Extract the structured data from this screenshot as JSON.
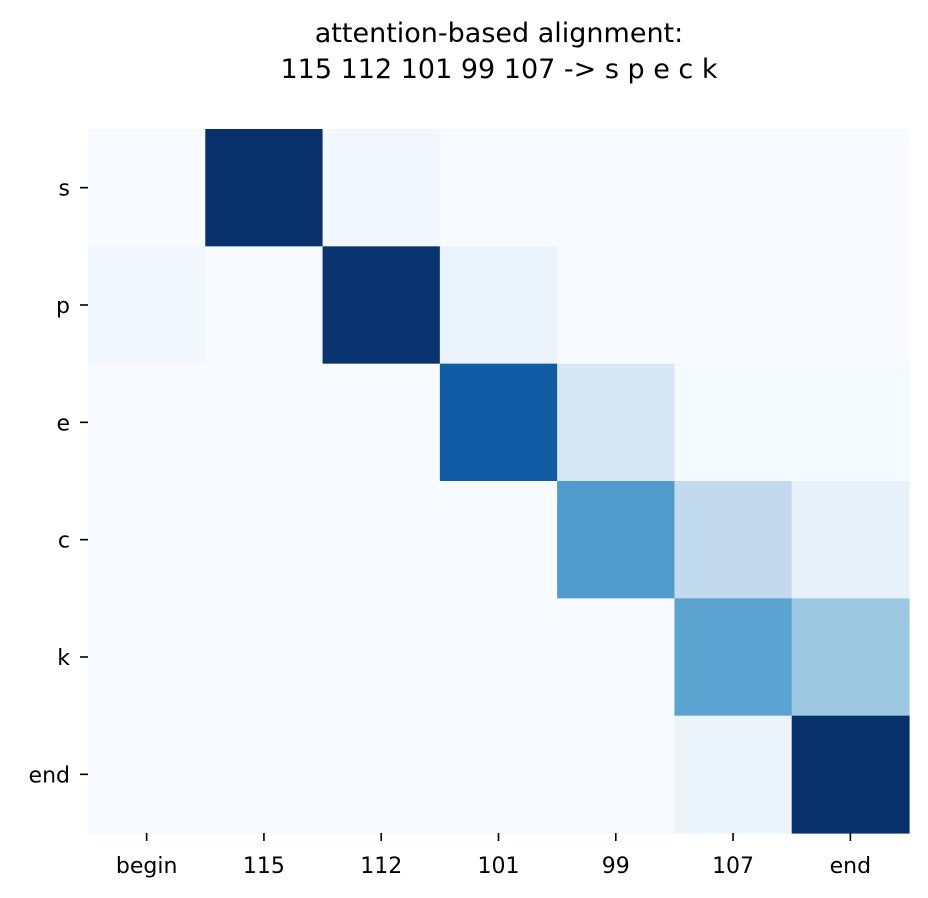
{
  "chart_data": {
    "type": "heatmap",
    "title_lines": [
      "attention-based alignment:",
      "115 112 101 99 107 -> s p e c k"
    ],
    "x_categories": [
      "begin",
      "115",
      "112",
      "101",
      "99",
      "107",
      "end"
    ],
    "y_categories": [
      "s",
      "p",
      "e",
      "c",
      "k",
      "end"
    ],
    "values": [
      [
        0.0,
        1.0,
        0.03,
        0.0,
        0.0,
        0.0,
        0.0
      ],
      [
        0.02,
        0.0,
        0.99,
        0.06,
        0.0,
        0.0,
        0.0
      ],
      [
        0.0,
        0.0,
        0.0,
        0.83,
        0.16,
        0.01,
        0.01
      ],
      [
        0.0,
        0.0,
        0.0,
        0.0,
        0.58,
        0.26,
        0.08
      ],
      [
        0.0,
        0.0,
        0.0,
        0.0,
        0.0,
        0.55,
        0.38
      ],
      [
        0.0,
        0.0,
        0.0,
        0.0,
        0.0,
        0.06,
        1.0
      ]
    ],
    "colormap": "Blues",
    "vmin": 0,
    "vmax": 1,
    "colorbar": false,
    "grid": false
  }
}
